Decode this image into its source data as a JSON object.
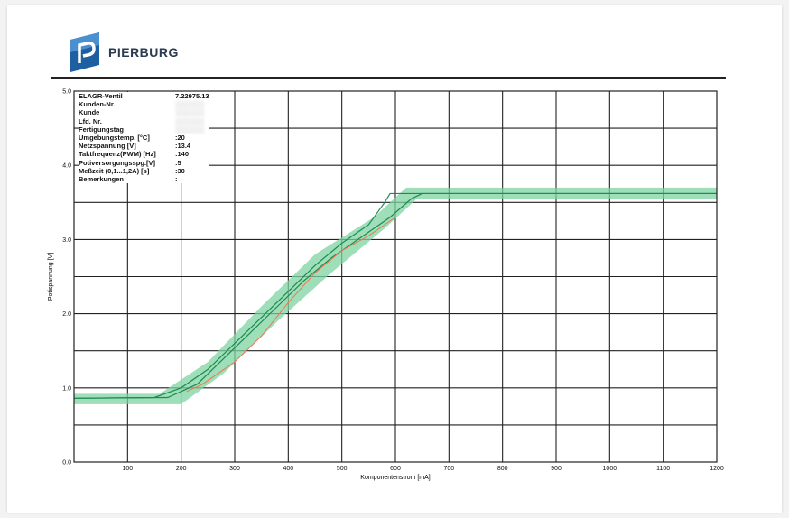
{
  "brand": {
    "name": "PIERBURG"
  },
  "colors": {
    "band": "#7ed3a0",
    "green_line": "#1f8a52",
    "orange_line": "#f07850",
    "grid": "#222222"
  },
  "info_table": [
    {
      "label": "ELAGR-Ventil",
      "value": "7.22975.13",
      "obscured": false
    },
    {
      "label": "Kunden-Nr.",
      "value": "",
      "obscured": true
    },
    {
      "label": "Kunde",
      "value": "",
      "obscured": true
    },
    {
      "label": "Lfd. Nr.",
      "value": "",
      "obscured": true
    },
    {
      "label": "Fertigungstag",
      "value": "",
      "obscured": true
    },
    {
      "label": "Umgebungstemp. [°C]",
      "value": ":20",
      "obscured": false
    },
    {
      "label": "Netzspannung  [V]",
      "value": ":13.4",
      "obscured": false
    },
    {
      "label": "Taktfrequenz(PWM) [Hz]",
      "value": ":140",
      "obscured": false
    },
    {
      "label": "Potiversorgungsspg.[V]",
      "value": ":5",
      "obscured": false
    },
    {
      "label": "Meßzeit (0,1...1,2A) [s]",
      "value": ":30",
      "obscured": false
    },
    {
      "label": "Bemerkungen",
      "value": ":",
      "obscured": false
    }
  ],
  "chart_data": {
    "type": "line",
    "xlabel": "Komponentenstrom [mA]",
    "ylabel": "Potispannung [V]",
    "xlim": [
      0,
      1200
    ],
    "ylim": [
      0,
      5.0
    ],
    "x_ticks": [
      "100",
      "200",
      "300",
      "400",
      "500",
      "600",
      "700",
      "800",
      "900",
      "1000",
      "1100",
      "1200"
    ],
    "y_ticks": [
      "0.0",
      "1.0",
      "2.0",
      "3.0",
      "4.0",
      "5.0"
    ],
    "grid": true,
    "band": {
      "upper": [
        [
          0,
          0.92
        ],
        [
          160,
          0.92
        ],
        [
          250,
          1.35
        ],
        [
          350,
          2.1
        ],
        [
          450,
          2.8
        ],
        [
          560,
          3.3
        ],
        [
          620,
          3.7
        ],
        [
          1200,
          3.7
        ]
      ],
      "lower": [
        [
          0,
          0.78
        ],
        [
          200,
          0.78
        ],
        [
          280,
          1.2
        ],
        [
          380,
          1.9
        ],
        [
          480,
          2.55
        ],
        [
          580,
          3.15
        ],
        [
          640,
          3.55
        ],
        [
          1200,
          3.55
        ]
      ]
    },
    "series": [
      {
        "color": "#1f8a52",
        "points": [
          [
            0,
            0.86
          ],
          [
            150,
            0.87
          ],
          [
            200,
            1.0
          ],
          [
            250,
            1.25
          ],
          [
            300,
            1.6
          ],
          [
            350,
            1.95
          ],
          [
            400,
            2.3
          ],
          [
            450,
            2.65
          ],
          [
            500,
            2.95
          ],
          [
            550,
            3.2
          ],
          [
            580,
            3.5
          ],
          [
            590,
            3.62
          ],
          [
            1200,
            3.62
          ]
        ]
      },
      {
        "color": "#1f8a52",
        "points": [
          [
            0,
            0.86
          ],
          [
            175,
            0.87
          ],
          [
            230,
            1.05
          ],
          [
            280,
            1.4
          ],
          [
            330,
            1.75
          ],
          [
            380,
            2.1
          ],
          [
            430,
            2.45
          ],
          [
            480,
            2.75
          ],
          [
            530,
            3.0
          ],
          [
            590,
            3.3
          ],
          [
            630,
            3.55
          ],
          [
            650,
            3.62
          ],
          [
            1200,
            3.62
          ]
        ]
      },
      {
        "color": "#f07850",
        "points": [
          [
            210,
            0.95
          ],
          [
            240,
            1.05
          ],
          [
            300,
            1.35
          ],
          [
            350,
            1.7
          ],
          [
            400,
            2.15
          ],
          [
            450,
            2.55
          ],
          [
            500,
            2.85
          ],
          [
            550,
            3.05
          ],
          [
            600,
            3.3
          ]
        ]
      }
    ]
  }
}
